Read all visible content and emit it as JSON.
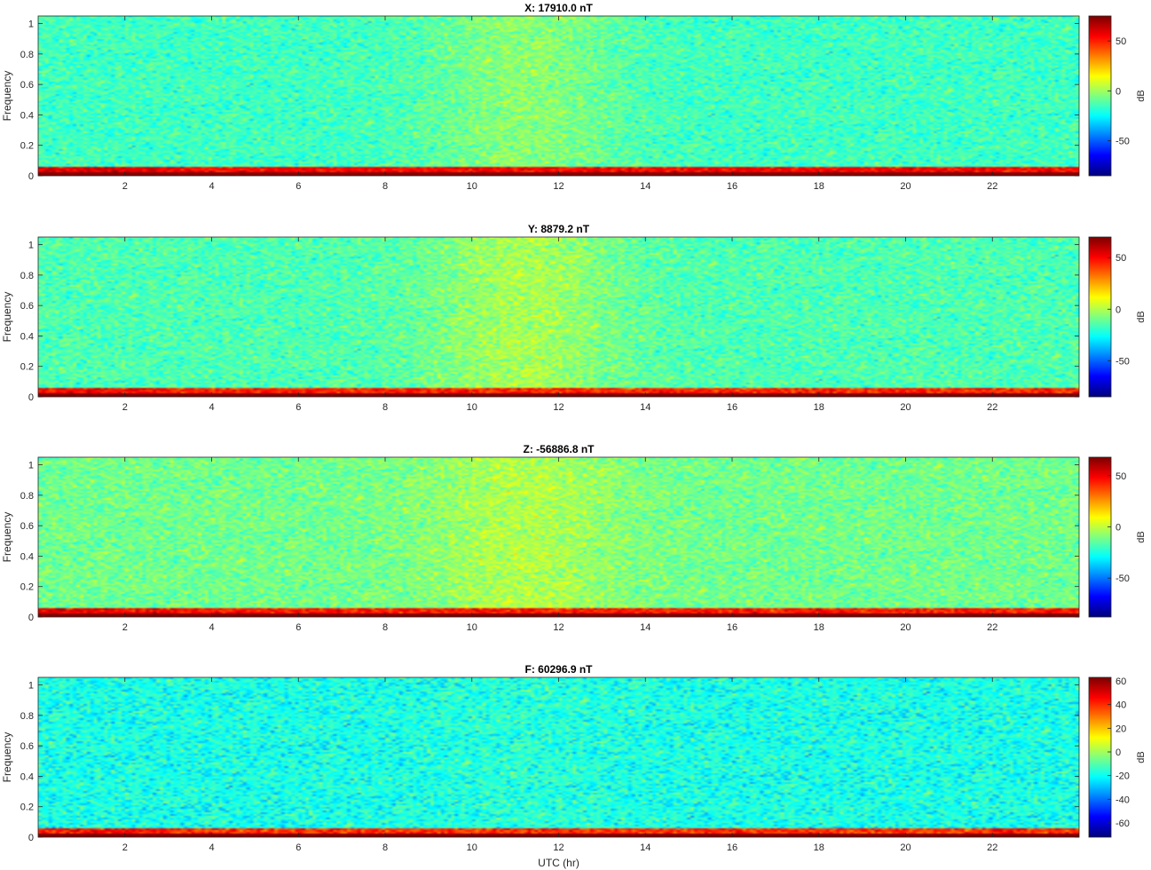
{
  "chart_data": [
    {
      "type": "heatmap",
      "title": "X: 17910.0 nT",
      "xlabel": "",
      "ylabel": "Frequency",
      "xlim": [
        0,
        24
      ],
      "ylim": [
        0,
        1.05
      ],
      "x_ticks": [
        2,
        4,
        6,
        8,
        10,
        12,
        14,
        16,
        18,
        20,
        22
      ],
      "y_ticks": [
        0,
        0.2,
        0.4,
        0.6,
        0.8,
        1
      ],
      "colorbar": {
        "label": "dB",
        "limits": [
          -85,
          75
        ],
        "ticks": [
          -50,
          0,
          50
        ],
        "colormap": "jet"
      },
      "background_level_db": -15,
      "midday_enhancement_db": 12,
      "low_frequency_level_db": 55,
      "near_zero_level_db": 75
    },
    {
      "type": "heatmap",
      "title": "Y: 8879.2 nT",
      "xlabel": "",
      "ylabel": "Frequency",
      "xlim": [
        0,
        24
      ],
      "ylim": [
        0,
        1.05
      ],
      "x_ticks": [
        2,
        4,
        6,
        8,
        10,
        12,
        14,
        16,
        18,
        20,
        22
      ],
      "y_ticks": [
        0,
        0.2,
        0.4,
        0.6,
        0.8,
        1
      ],
      "colorbar": {
        "label": "dB",
        "limits": [
          -85,
          70
        ],
        "ticks": [
          -50,
          0,
          50
        ],
        "colormap": "jet"
      },
      "background_level_db": -15,
      "midday_enhancement_db": 14,
      "low_frequency_level_db": 45,
      "near_zero_level_db": 70
    },
    {
      "type": "heatmap",
      "title": "Z: -56886.8 nT",
      "xlabel": "",
      "ylabel": "Frequency",
      "xlim": [
        0,
        24
      ],
      "ylim": [
        0,
        1.05
      ],
      "x_ticks": [
        2,
        4,
        6,
        8,
        10,
        12,
        14,
        16,
        18,
        20,
        22
      ],
      "y_ticks": [
        0,
        0.2,
        0.4,
        0.6,
        0.8,
        1
      ],
      "colorbar": {
        "label": "dB",
        "limits": [
          -88,
          68
        ],
        "ticks": [
          -50,
          0,
          50
        ],
        "colormap": "jet"
      },
      "background_level_db": -12,
      "midday_enhancement_db": 10,
      "low_frequency_level_db": 45,
      "near_zero_level_db": 68
    },
    {
      "type": "heatmap",
      "title": "F: 60296.9 nT",
      "xlabel": "UTC (hr)",
      "ylabel": "Frequency",
      "xlim": [
        0,
        24
      ],
      "ylim": [
        0,
        1.05
      ],
      "x_ticks": [
        2,
        4,
        6,
        8,
        10,
        12,
        14,
        16,
        18,
        20,
        22
      ],
      "y_ticks": [
        0,
        0.2,
        0.4,
        0.6,
        0.8,
        1
      ],
      "colorbar": {
        "label": "dB",
        "limits": [
          -72,
          63
        ],
        "ticks": [
          -60,
          -40,
          -20,
          0,
          20,
          40,
          60
        ],
        "colormap": "jet"
      },
      "background_level_db": -18,
      "midday_enhancement_db": 2,
      "low_frequency_level_db": 40,
      "near_zero_level_db": 63
    }
  ]
}
